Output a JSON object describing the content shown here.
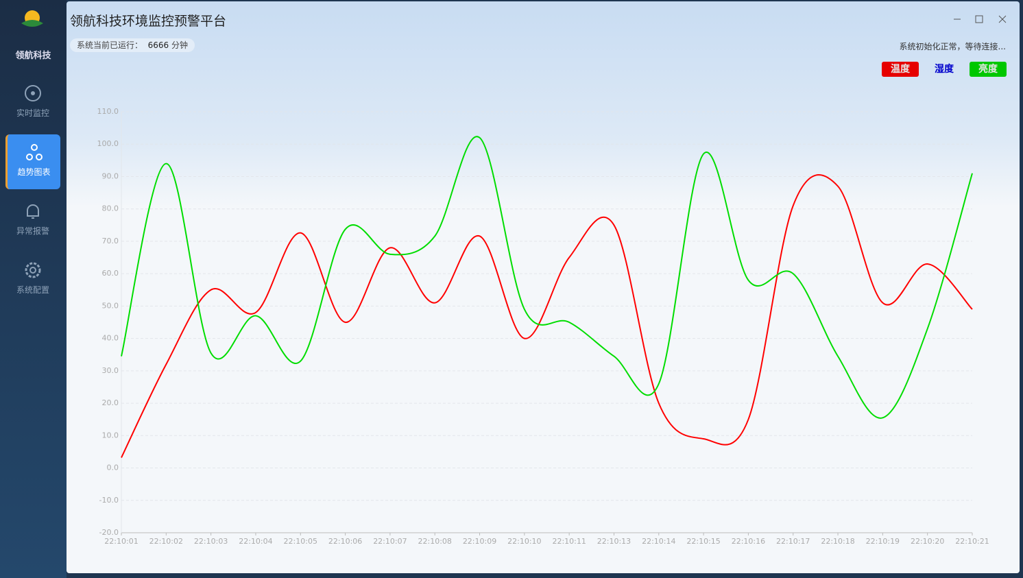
{
  "app": {
    "logo_text": "领航科技",
    "nav": [
      {
        "label": "实时监控",
        "active": false
      },
      {
        "label": "趋势图表",
        "active": true
      },
      {
        "label": "异常报警",
        "active": false
      },
      {
        "label": "系统配置",
        "active": false
      }
    ],
    "title": "领航科技环境监控预警平台",
    "status_left_label": "系统当前已运行：",
    "status_left_value": "6666",
    "status_left_unit": "分钟",
    "status_right": "系统初始化正常，等待连接..."
  },
  "chart_data": {
    "type": "line",
    "categories": [
      "22:10:01",
      "22:10:02",
      "22:10:03",
      "22:10:04",
      "22:10:05",
      "22:10:06",
      "22:10:07",
      "22:10:08",
      "22:10:09",
      "22:10:10",
      "22:10:11",
      "22:10:13",
      "22:10:14",
      "22:10:15",
      "22:10:16",
      "22:10:17",
      "22:10:18",
      "22:10:19",
      "22:10:20",
      "22:10:21"
    ],
    "series": [
      {
        "name": "温度",
        "color": "#ff0000",
        "visible": true,
        "values": [
          3.2,
          32,
          55,
          48,
          72.6,
          45,
          68,
          51,
          71.6,
          40,
          65,
          75,
          20,
          9,
          15,
          81,
          87,
          51,
          63,
          49
        ]
      },
      {
        "name": "湿度",
        "color": "#0000cc",
        "visible": false,
        "values": [
          null,
          null,
          null,
          null,
          null,
          null,
          null,
          null,
          null,
          null,
          null,
          null,
          null,
          null,
          null,
          null,
          null,
          null,
          null,
          null
        ]
      },
      {
        "name": "亮度",
        "color": "#00dd00",
        "visible": true,
        "values": [
          34.5,
          94,
          35.5,
          47,
          33,
          73.7,
          66,
          71.6,
          102,
          49,
          45,
          34.5,
          26,
          97,
          58,
          60,
          34.5,
          15.5,
          43,
          91
        ]
      }
    ],
    "ylim": [
      -20,
      110
    ],
    "yticks": [
      {
        "value": -20,
        "label": "-20.0"
      },
      {
        "value": -10,
        "label": "-10.0"
      },
      {
        "value": 0,
        "label": "0.0"
      },
      {
        "value": 10,
        "label": "10.0"
      },
      {
        "value": 20,
        "label": "20.0"
      },
      {
        "value": 30,
        "label": "30.0"
      },
      {
        "value": 40,
        "label": "40.0"
      },
      {
        "value": 50,
        "label": "50.0"
      },
      {
        "value": 60,
        "label": "60.0"
      },
      {
        "value": 70,
        "label": "70.0"
      },
      {
        "value": 80,
        "label": "80.0"
      },
      {
        "value": 90,
        "label": "90.0"
      },
      {
        "value": 100,
        "label": "100.0"
      },
      {
        "value": 110,
        "label": "110.0"
      }
    ],
    "grid": true,
    "legend": "top-right"
  }
}
